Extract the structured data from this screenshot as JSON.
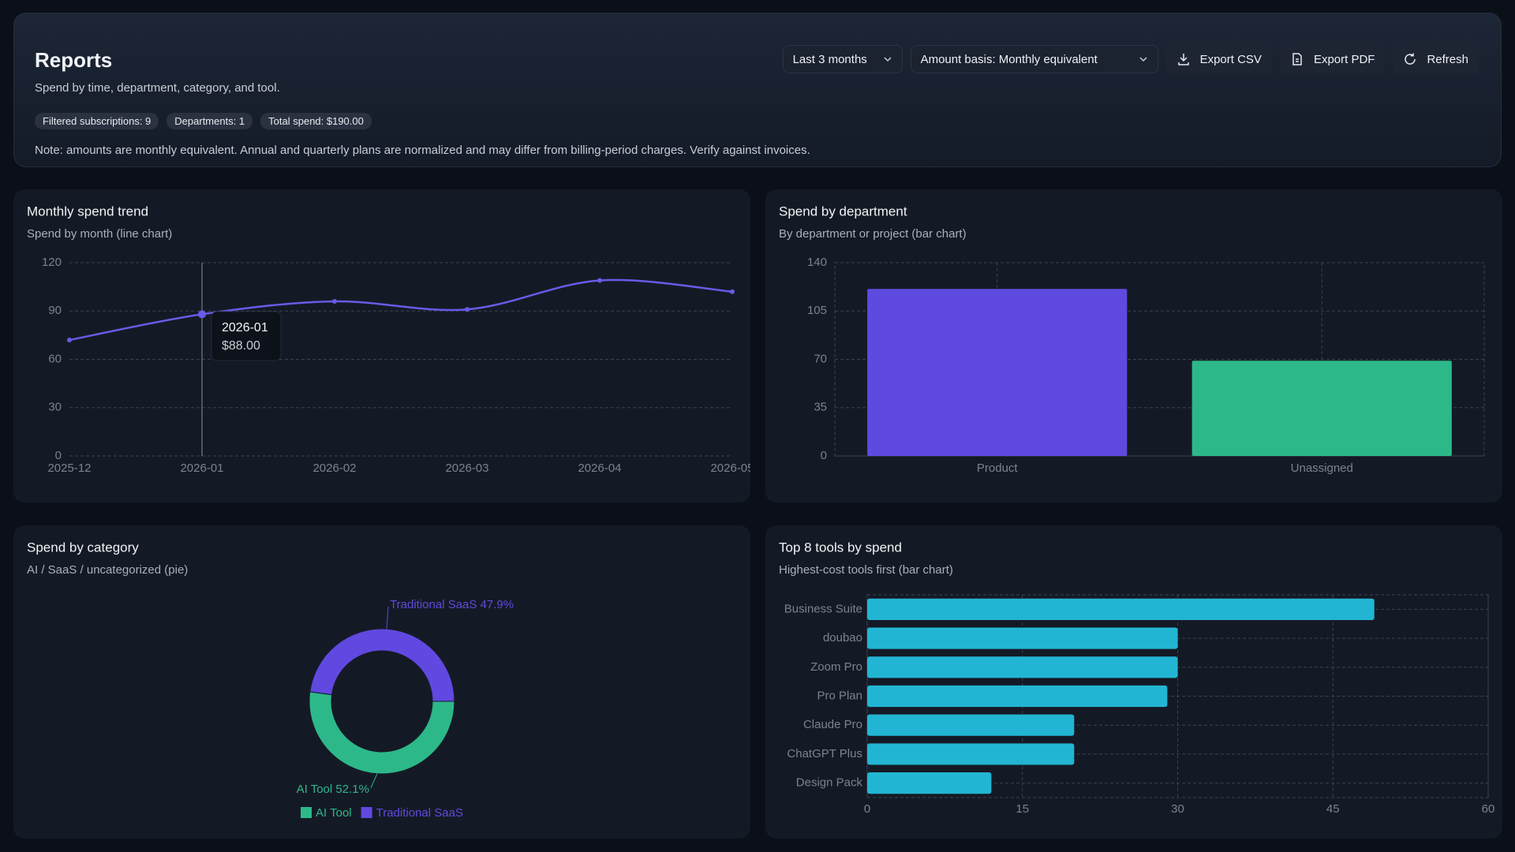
{
  "header": {
    "title": "Reports",
    "subtitle": "Spend by time, department, category, and tool.",
    "chips": [
      "Filtered subscriptions: 9",
      "Departments: 1",
      "Total spend: $190.00"
    ],
    "note": "Note: amounts are monthly equivalent. Annual and quarterly plans are normalized and may differ from billing-period charges. Verify against invoices."
  },
  "controls": {
    "range": "Last 3 months",
    "basis": "Amount basis: Monthly equivalent",
    "buttons": [
      "Export CSV",
      "Export PDF",
      "Refresh"
    ]
  },
  "chart_data": [
    {
      "type": "line",
      "title": "Monthly spend trend",
      "subtitle": "Spend by month (line chart)",
      "categories": [
        "2025-12",
        "2026-01",
        "2026-02",
        "2026-03",
        "2026-04",
        "2026-05"
      ],
      "values": [
        72,
        88,
        96,
        91,
        109,
        102
      ],
      "color": "#6a5ae8",
      "ylim": [
        0,
        120
      ],
      "yticks": [
        0,
        30,
        60,
        90,
        120
      ],
      "grid": true,
      "tooltip": {
        "title": "2026-01",
        "value": "$88.00"
      }
    },
    {
      "type": "bar",
      "title": "Spend by department",
      "subtitle": "By department or project (bar chart)",
      "categories": [
        "Product",
        "Unassigned"
      ],
      "values": [
        121,
        69
      ],
      "colors": [
        "#5f4ae0",
        "#2db88a"
      ],
      "ylim": [
        0,
        140
      ],
      "yticks": [
        0,
        35,
        70,
        105,
        140
      ],
      "grid": true
    },
    {
      "type": "pie",
      "title": "Spend by category",
      "subtitle": "AI / SaaS / uncategorized (pie)",
      "categories": [
        "AI Tool",
        "Traditional SaaS"
      ],
      "values": [
        52.1,
        47.9
      ],
      "value_labels": [
        "AI Tool 52.1%",
        "Traditional SaaS 47.9%"
      ],
      "colors": [
        "#2db88a",
        "#6148e0"
      ],
      "legend": "bottom"
    },
    {
      "type": "barh",
      "title": "Top 8 tools by spend",
      "subtitle": "Highest-cost tools first (bar chart)",
      "categories": [
        "Business Suite",
        "doubao",
        "Zoom Pro",
        "Pro Plan",
        "Claude Pro",
        "ChatGPT Plus",
        "Design Pack"
      ],
      "values": [
        49,
        30,
        30,
        29,
        20,
        20,
        12
      ],
      "color": "#22b5d3",
      "xlim": [
        0,
        60
      ],
      "xticks": [
        0,
        15,
        30,
        45,
        60
      ],
      "grid": true
    }
  ]
}
